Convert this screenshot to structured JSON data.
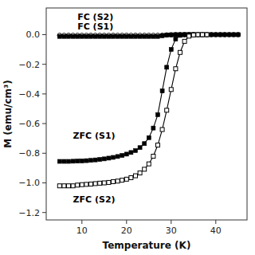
{
  "chart_data": {
    "type": "line",
    "xlabel": "Temperature (K)",
    "ylabel": "M (emu/cm³)",
    "xlim": [
      2,
      47
    ],
    "ylim": [
      -1.25,
      0.18
    ],
    "xticks": [
      10,
      20,
      30,
      40
    ],
    "yticks": [
      {
        "value": 0.0,
        "label": "0.0"
      },
      {
        "value": -0.2,
        "label": "−0.2"
      },
      {
        "value": -0.4,
        "label": "−0.4"
      },
      {
        "value": -0.6,
        "label": "−0.6"
      },
      {
        "value": -0.8,
        "label": "−0.8"
      },
      {
        "value": -1.0,
        "label": "−1.0"
      },
      {
        "value": -1.2,
        "label": "−1.2"
      }
    ],
    "grid": false,
    "series": [
      {
        "color": "#000000",
        "marker": "circle-open",
        "x": [
          5,
          6,
          7,
          8,
          9,
          10,
          11,
          12,
          13,
          14,
          15,
          16,
          17,
          18,
          19,
          20,
          21,
          22,
          23,
          24,
          25,
          26,
          27,
          28,
          29,
          30,
          31,
          32,
          33,
          34,
          35,
          36,
          37,
          38,
          39,
          40,
          41,
          42,
          43,
          44,
          45
        ],
        "values": [
          -0.005,
          -0.005,
          -0.005,
          -0.005,
          -0.005,
          -0.005,
          -0.005,
          -0.005,
          -0.005,
          -0.005,
          -0.005,
          -0.005,
          -0.005,
          -0.005,
          -0.005,
          -0.005,
          -0.005,
          -0.005,
          -0.005,
          -0.005,
          -0.005,
          -0.005,
          -0.005,
          -0.004,
          -0.002,
          -0.001,
          0.0,
          0.0,
          0.0,
          0.0,
          0.0,
          0.0,
          0.0,
          0.0,
          0.0,
          0.0,
          0.0,
          0.0,
          0.0,
          0.0,
          0.0
        ]
      },
      {
        "color": "#000000",
        "marker": "square",
        "x": [
          5,
          6,
          7,
          8,
          9,
          10,
          11,
          12,
          13,
          14,
          15,
          16,
          17,
          18,
          19,
          20,
          21,
          22,
          23,
          24,
          25,
          26,
          27,
          28,
          29,
          30,
          31,
          32,
          33,
          34,
          35,
          36,
          37,
          38,
          39,
          40,
          41,
          42,
          43,
          44,
          45
        ],
        "values": [
          -0.012,
          -0.012,
          -0.012,
          -0.012,
          -0.012,
          -0.012,
          -0.012,
          -0.012,
          -0.012,
          -0.012,
          -0.012,
          -0.012,
          -0.012,
          -0.012,
          -0.012,
          -0.012,
          -0.012,
          -0.012,
          -0.012,
          -0.012,
          -0.012,
          -0.012,
          -0.012,
          -0.007,
          -0.003,
          -0.001,
          0.0,
          0.0,
          0.0,
          0.0,
          0.0,
          0.0,
          0.0,
          0.0,
          0.0,
          0.0,
          0.0,
          0.0,
          0.0,
          0.0,
          0.0
        ]
      },
      {
        "color": "#000000",
        "marker": "square",
        "x": [
          5,
          6,
          7,
          8,
          9,
          10,
          11,
          12,
          13,
          14,
          15,
          16,
          17,
          18,
          19,
          20,
          21,
          22,
          23,
          24,
          25,
          26,
          27,
          28,
          29,
          30,
          31,
          32,
          33,
          34,
          35
        ],
        "values": [
          -0.855,
          -0.855,
          -0.855,
          -0.854,
          -0.853,
          -0.852,
          -0.85,
          -0.848,
          -0.845,
          -0.842,
          -0.838,
          -0.833,
          -0.828,
          -0.822,
          -0.815,
          -0.806,
          -0.795,
          -0.782,
          -0.762,
          -0.735,
          -0.695,
          -0.63,
          -0.54,
          -0.38,
          -0.22,
          -0.1,
          -0.03,
          -0.005,
          0.0,
          0.0,
          0.0
        ]
      },
      {
        "color": "#000000",
        "marker": "square-open",
        "x": [
          5,
          6,
          7,
          8,
          9,
          10,
          11,
          12,
          13,
          14,
          15,
          16,
          17,
          18,
          19,
          20,
          21,
          22,
          23,
          24,
          25,
          26,
          27,
          28,
          29,
          30,
          31,
          32,
          33,
          34,
          35,
          36,
          37,
          38
        ],
        "values": [
          -1.02,
          -1.02,
          -1.02,
          -1.02,
          -1.015,
          -1.012,
          -1.01,
          -1.008,
          -1.005,
          -1.002,
          -1.0,
          -0.997,
          -0.992,
          -0.988,
          -0.982,
          -0.975,
          -0.965,
          -0.952,
          -0.933,
          -0.908,
          -0.872,
          -0.82,
          -0.745,
          -0.64,
          -0.51,
          -0.37,
          -0.23,
          -0.12,
          -0.045,
          -0.01,
          -0.002,
          0.0,
          0.0,
          0.0
        ]
      }
    ],
    "annotations": [
      {
        "text": "FC (S2)",
        "x": 9,
        "y": 0.1
      },
      {
        "text": "FC (S1)",
        "x": 9,
        "y": 0.035
      },
      {
        "text": "ZFC (S1)",
        "x": 8,
        "y": -0.7
      },
      {
        "text": "ZFC (S2)",
        "x": 8,
        "y": -1.13
      }
    ]
  }
}
